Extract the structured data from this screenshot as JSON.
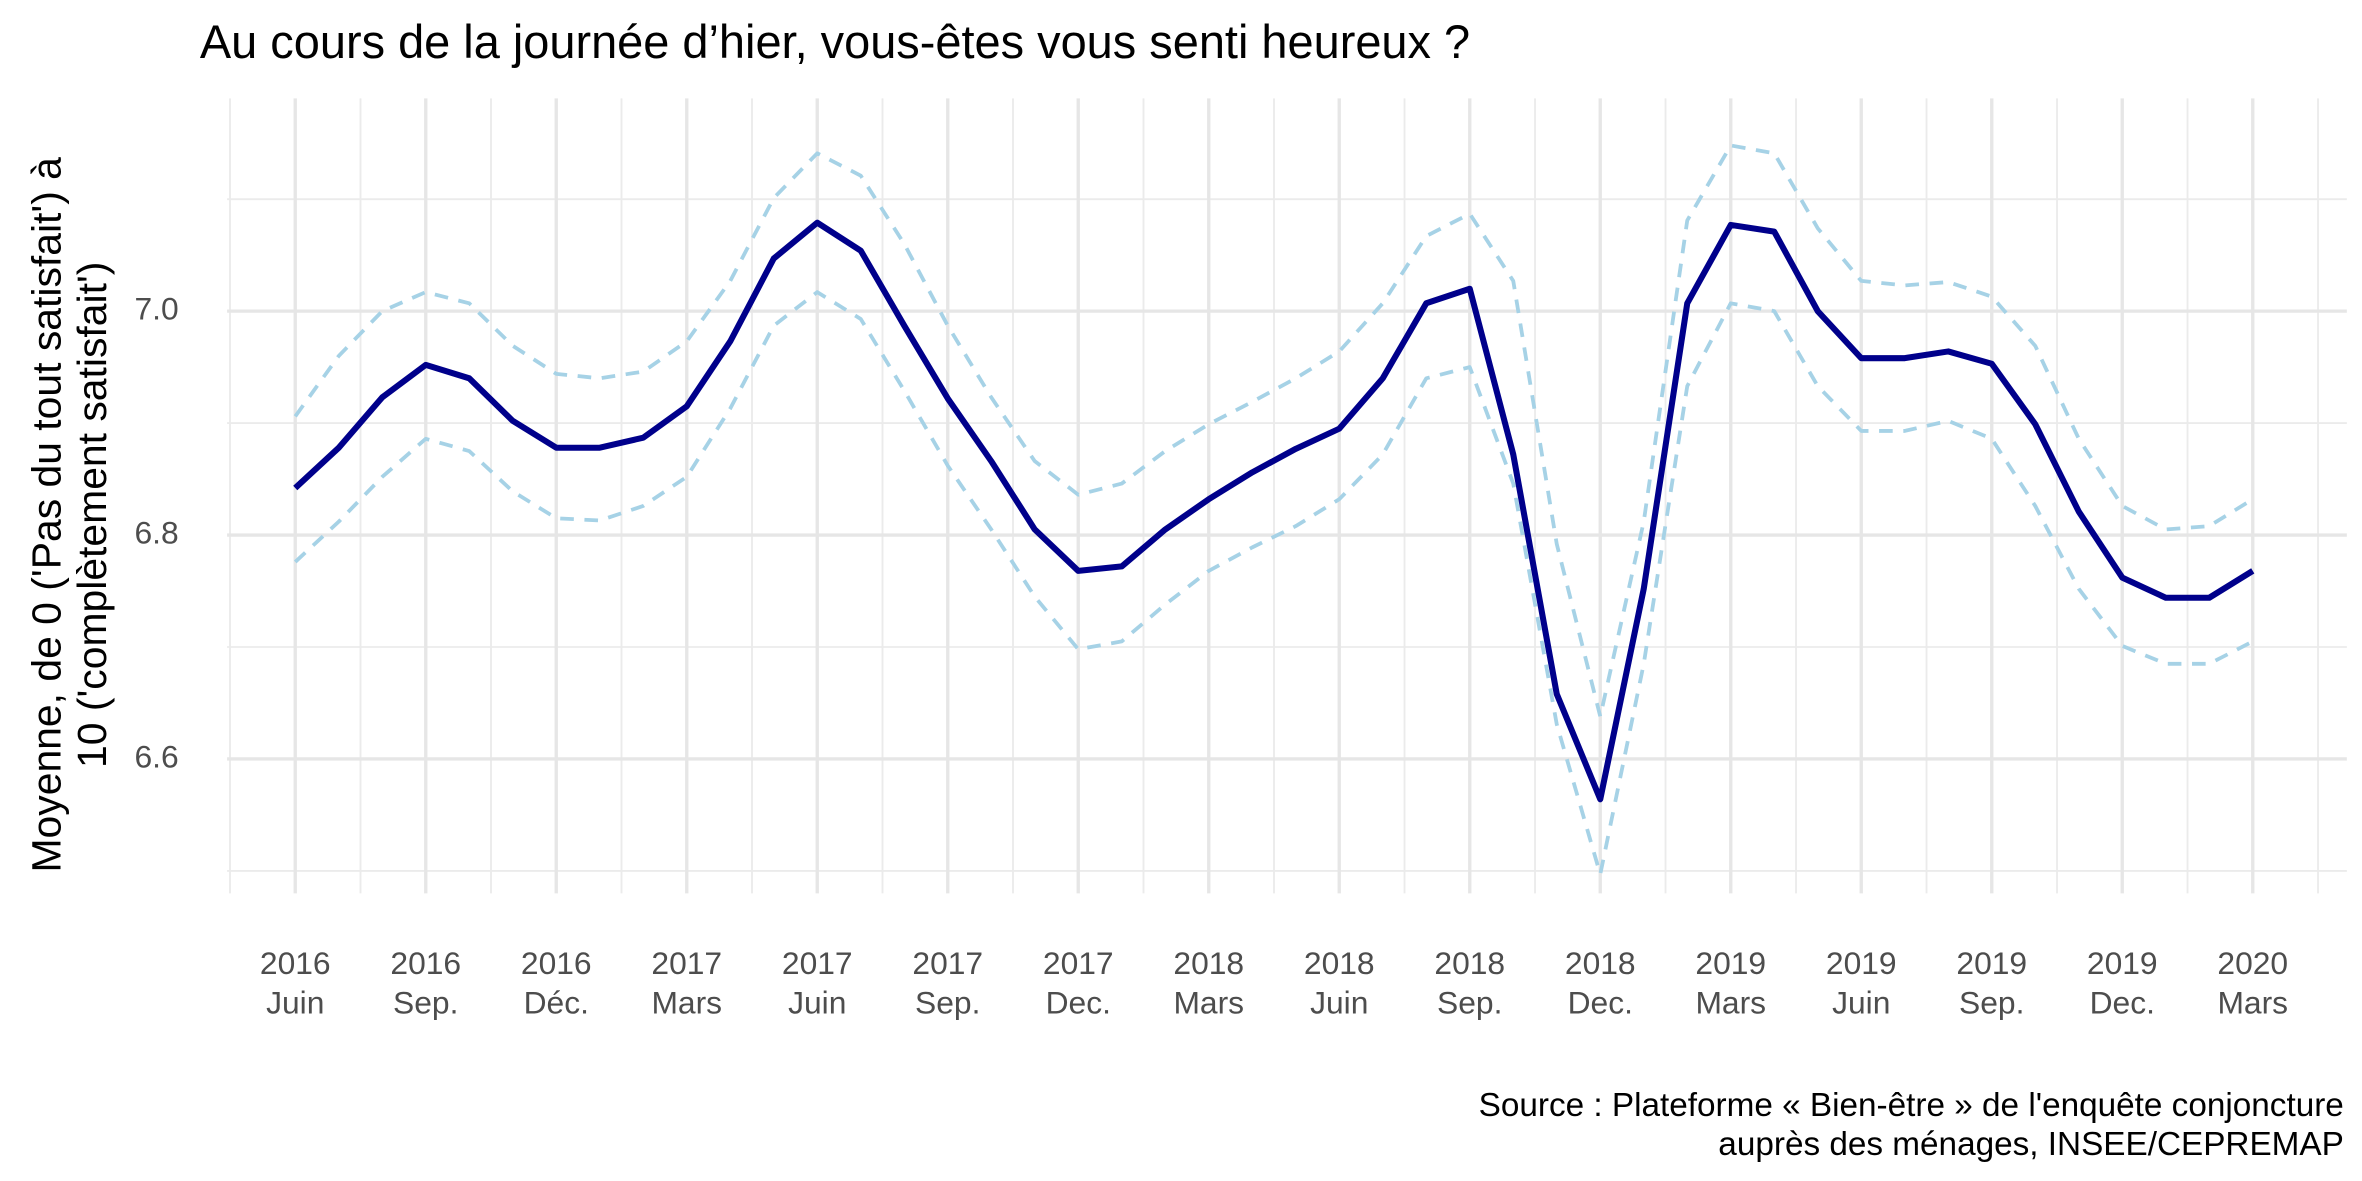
{
  "chart_data": {
    "type": "line",
    "title": "Au cours de la journée d’hier, vous-êtes vous senti heureux ?",
    "y_label": "Moyenne, de 0 ('Pas du tout satisfait') à\n10 ('complètement satisfait')",
    "caption": "Source : Plateforme « Bien-être » de l'enquête conjoncture\nauprès des ménages, INSEE/CEPREMAP",
    "x": [
      "2016-06",
      "2016-07",
      "2016-08",
      "2016-09",
      "2016-10",
      "2016-11",
      "2016-12",
      "2017-01",
      "2017-02",
      "2017-03",
      "2017-04",
      "2017-05",
      "2017-06",
      "2017-07",
      "2017-08",
      "2017-09",
      "2017-10",
      "2017-11",
      "2017-12",
      "2018-01",
      "2018-02",
      "2018-03",
      "2018-04",
      "2018-05",
      "2018-06",
      "2018-07",
      "2018-08",
      "2018-09",
      "2018-10",
      "2018-11",
      "2018-12",
      "2019-01",
      "2019-02",
      "2019-03",
      "2019-04",
      "2019-05",
      "2019-06",
      "2019-07",
      "2019-08",
      "2019-09",
      "2019-10",
      "2019-11",
      "2019-12",
      "2020-01",
      "2020-02",
      "2020-03"
    ],
    "xticks": [
      {
        "value": "2016-06",
        "label": "2016\nJuin"
      },
      {
        "value": "2016-09",
        "label": "2016\nSep."
      },
      {
        "value": "2016-12",
        "label": "2016\nDéc."
      },
      {
        "value": "2017-03",
        "label": "2017\nMars"
      },
      {
        "value": "2017-06",
        "label": "2017\nJuin"
      },
      {
        "value": "2017-09",
        "label": "2017\nSep."
      },
      {
        "value": "2017-12",
        "label": "2017\nDec."
      },
      {
        "value": "2018-03",
        "label": "2018\nMars"
      },
      {
        "value": "2018-06",
        "label": "2018\nJuin"
      },
      {
        "value": "2018-09",
        "label": "2018\nSep."
      },
      {
        "value": "2018-12",
        "label": "2018\nDec."
      },
      {
        "value": "2019-03",
        "label": "2019\nMars"
      },
      {
        "value": "2019-06",
        "label": "2019\nJuin"
      },
      {
        "value": "2019-09",
        "label": "2019\nSep."
      },
      {
        "value": "2019-12",
        "label": "2019\nDec."
      },
      {
        "value": "2020-03",
        "label": "2020\nMars"
      }
    ],
    "ylim": [
      6.48,
      7.19
    ],
    "yticks": [
      6.6,
      6.8,
      {
        "value": 7,
        "label": "7.0"
      }
    ],
    "yminorticks": [
      6.5,
      6.7,
      6.9,
      7.1
    ],
    "grid": true,
    "series": [
      {
        "color": "#a6d2e6",
        "dash": true,
        "width": 2.5,
        "values": [
          6.906,
          6.96,
          7.0,
          7.017,
          7.007,
          6.969,
          6.944,
          6.94,
          6.946,
          6.973,
          7.027,
          7.101,
          7.141,
          7.121,
          7.06,
          6.987,
          6.923,
          6.866,
          6.836,
          6.846,
          6.875,
          6.899,
          6.919,
          6.94,
          6.964,
          7.007,
          7.067,
          7.087,
          7.027,
          6.792,
          6.638,
          6.812,
          7.081,
          7.148,
          7.141,
          7.074,
          7.027,
          7.023,
          7.026,
          7.013,
          6.969,
          6.886,
          6.826,
          6.805,
          6.808,
          6.832
        ]
      },
      {
        "color": "#a6d2e6",
        "dash": true,
        "width": 2.5,
        "values": [
          6.776,
          6.812,
          6.852,
          6.886,
          6.875,
          6.839,
          6.815,
          6.813,
          6.826,
          6.852,
          6.913,
          6.987,
          7.017,
          6.993,
          6.929,
          6.862,
          6.805,
          6.745,
          6.698,
          6.705,
          6.738,
          6.768,
          6.789,
          6.808,
          6.832,
          6.872,
          6.94,
          6.95,
          6.846,
          6.631,
          6.497,
          6.685,
          6.933,
          7.007,
          7.0,
          6.933,
          6.893,
          6.893,
          6.902,
          6.886,
          6.826,
          6.752,
          6.701,
          6.685,
          6.685,
          6.705
        ]
      },
      {
        "color": "#00008b",
        "dash": false,
        "width": 4,
        "values": [
          6.842,
          6.878,
          6.923,
          6.952,
          6.94,
          6.902,
          6.878,
          6.878,
          6.887,
          6.915,
          6.973,
          7.047,
          7.079,
          7.054,
          6.987,
          6.922,
          6.866,
          6.805,
          6.768,
          6.772,
          6.805,
          6.832,
          6.856,
          6.877,
          6.895,
          6.94,
          7.007,
          7.02,
          6.872,
          6.658,
          6.564,
          6.752,
          7.007,
          7.077,
          7.071,
          7.0,
          6.958,
          6.958,
          6.964,
          6.953,
          6.899,
          6.821,
          6.762,
          6.744,
          6.744,
          6.768
        ]
      }
    ]
  }
}
